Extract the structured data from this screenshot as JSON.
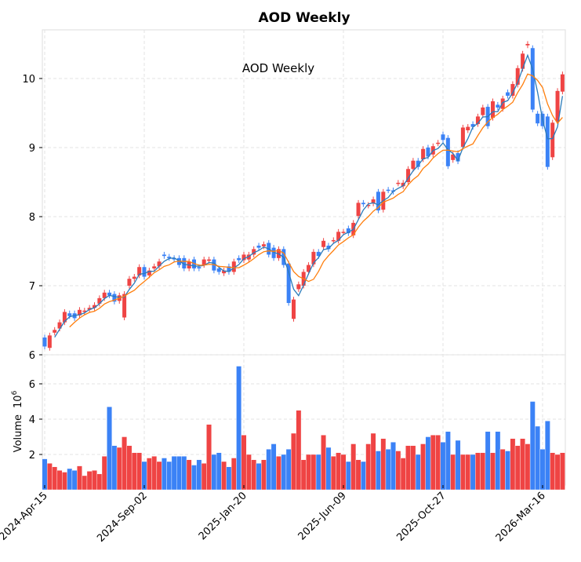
{
  "chart_data": {
    "type": "candlestick",
    "title": "AOD  Weekly",
    "annotation": "AOD  Weekly",
    "ylabel_volume": "Volume",
    "volume_unit": "10",
    "volume_exp": "6",
    "price_ylim": [
      6,
      10.7
    ],
    "price_ticks": [
      "6",
      "7",
      "8",
      "9",
      "10"
    ],
    "volume_ylim": [
      0,
      7.4
    ],
    "volume_ticks": [
      "2",
      "4",
      "6"
    ],
    "x_tick_labels": [
      "2024-Apr-15",
      "2024-Sep-02",
      "2025-Jan-20",
      "2025-Jun-09",
      "2025-Oct-27",
      "2026-Mar-16"
    ],
    "x_tick_week_index": [
      0,
      20,
      40,
      60,
      80,
      100
    ],
    "moving_average_periods": [
      3,
      6
    ],
    "colors": {
      "up": "#ef4444",
      "down": "#3b82f6",
      "ma_short": "#2b7bba",
      "ma_long": "#ff7f0e"
    },
    "open": [
      6.25,
      6.1,
      6.32,
      6.38,
      6.47,
      6.6,
      6.6,
      6.57,
      6.62,
      6.65,
      6.68,
      6.74,
      6.82,
      6.9,
      6.88,
      6.78,
      6.54,
      7.0,
      7.1,
      7.15,
      7.27,
      7.15,
      7.25,
      7.28,
      7.45,
      7.42,
      7.4,
      7.4,
      7.4,
      7.25,
      7.38,
      7.27,
      7.3,
      7.36,
      7.38,
      7.25,
      7.18,
      7.28,
      7.2,
      7.4,
      7.37,
      7.38,
      7.45,
      7.58,
      7.57,
      7.62,
      7.55,
      7.4,
      7.53,
      7.32,
      6.52,
      6.95,
      7.0,
      7.2,
      7.31,
      7.49,
      7.56,
      7.58,
      7.65,
      7.65,
      7.77,
      7.83,
      7.73,
      8.01,
      8.2,
      8.16,
      8.19,
      8.36,
      8.1,
      8.39,
      8.38,
      8.48,
      8.44,
      8.5,
      8.69,
      8.81,
      8.83,
      9.0,
      8.9,
      9.06,
      9.19,
      9.14,
      8.82,
      8.92,
      9.01,
      9.25,
      9.34,
      9.34,
      9.47,
      9.59,
      9.43,
      9.62,
      9.56,
      9.8,
      9.75,
      9.91,
      10.14,
      10.48,
      10.44,
      9.49,
      9.49,
      9.45,
      8.86,
      9.38,
      9.81
    ],
    "close": [
      6.12,
      6.28,
      6.36,
      6.47,
      6.62,
      6.56,
      6.53,
      6.65,
      6.64,
      6.68,
      6.72,
      6.82,
      6.9,
      6.86,
      6.77,
      6.86,
      6.88,
      7.1,
      7.13,
      7.27,
      7.13,
      7.22,
      7.28,
      7.35,
      7.43,
      7.4,
      7.38,
      7.3,
      7.25,
      7.35,
      7.25,
      7.25,
      7.38,
      7.38,
      7.22,
      7.2,
      7.22,
      7.2,
      7.35,
      7.37,
      7.45,
      7.45,
      7.53,
      7.55,
      7.6,
      7.45,
      7.4,
      7.53,
      7.3,
      6.75,
      6.8,
      7.02,
      7.2,
      7.3,
      7.49,
      7.43,
      7.65,
      7.53,
      7.66,
      7.78,
      7.78,
      7.76,
      7.91,
      8.2,
      8.18,
      8.17,
      8.25,
      8.09,
      8.36,
      8.38,
      8.36,
      8.49,
      8.49,
      8.69,
      8.81,
      8.72,
      8.98,
      8.87,
      9.02,
      9.07,
      9.11,
      8.73,
      8.9,
      8.8,
      9.29,
      9.3,
      9.3,
      9.45,
      9.58,
      9.31,
      9.67,
      9.58,
      9.71,
      9.75,
      9.92,
      10.15,
      10.36,
      10.5,
      9.55,
      9.35,
      9.31,
      8.72,
      9.36,
      9.82,
      10.06
    ],
    "volume_millions": [
      1.75,
      1.5,
      1.3,
      1.1,
      1.0,
      1.2,
      1.1,
      1.35,
      0.8,
      1.05,
      1.1,
      0.9,
      1.9,
      4.7,
      2.5,
      2.4,
      3.0,
      2.5,
      2.1,
      2.1,
      1.6,
      1.8,
      1.9,
      1.6,
      1.8,
      1.6,
      1.9,
      1.9,
      1.9,
      1.7,
      1.4,
      1.7,
      1.5,
      3.7,
      2.0,
      2.1,
      1.6,
      1.3,
      1.8,
      7.0,
      3.1,
      2.0,
      1.7,
      1.5,
      1.7,
      2.3,
      2.6,
      1.9,
      2.0,
      2.3,
      3.2,
      4.5,
      1.7,
      2.0,
      2.0,
      2.0,
      3.1,
      2.4,
      1.9,
      2.1,
      2.0,
      1.6,
      2.6,
      1.7,
      1.6,
      2.6,
      3.2,
      2.2,
      2.9,
      2.3,
      2.7,
      2.2,
      1.8,
      2.5,
      2.5,
      2.0,
      2.6,
      3.0,
      3.1,
      3.1,
      2.7,
      3.3,
      2.0,
      2.8,
      2.0,
      2.0,
      2.0,
      2.1,
      2.1,
      3.3,
      2.1,
      3.3,
      2.3,
      2.2,
      2.9,
      2.5,
      2.9,
      2.6,
      5.0,
      3.6,
      2.3,
      3.9,
      2.1,
      2.0,
      2.1
    ]
  }
}
